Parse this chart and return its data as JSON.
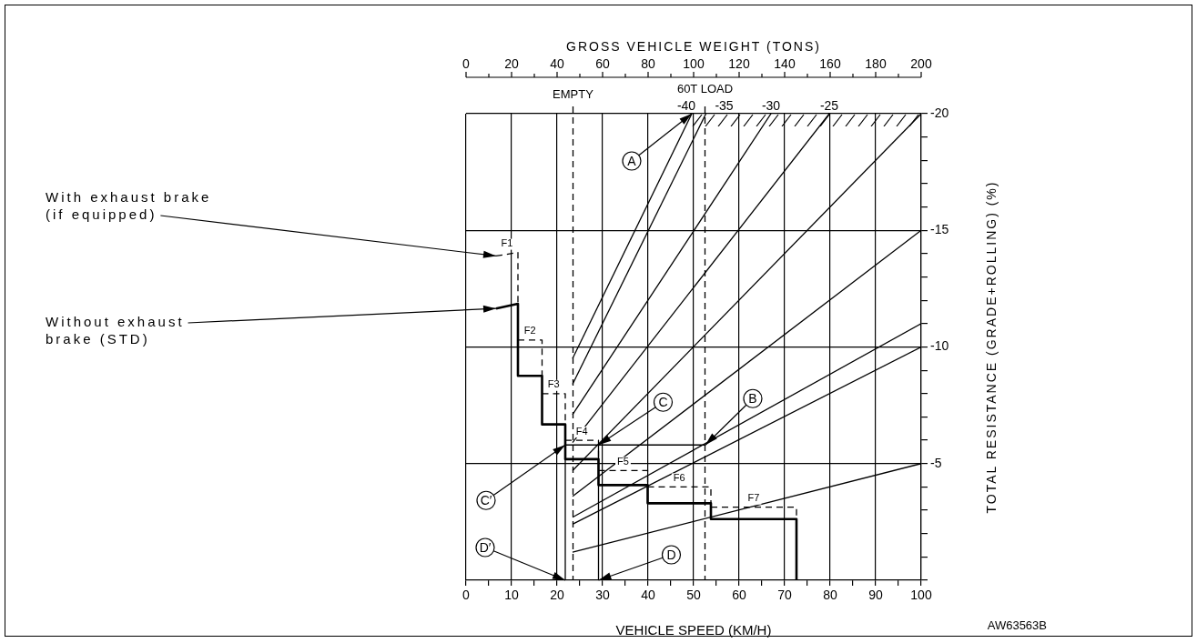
{
  "chart_data": {
    "type": "line",
    "xlabel": "VEHICLE SPEED (KM/H)",
    "x2label": "GROSS VEHICLE WEIGHT (TONS)",
    "ylabel": "TOTAL RESISTANCE (GRADE+ROLLING) (%)",
    "xlim": [
      0,
      100
    ],
    "xticks": [
      0,
      {
        "value": 5,
        "label": null
      },
      10,
      {
        "value": 15,
        "label": null
      },
      20,
      {
        "value": 25,
        "label": null
      },
      30,
      {
        "value": 35,
        "label": null
      },
      40,
      {
        "value": 45,
        "label": null
      },
      50,
      {
        "value": 55,
        "label": null
      },
      60,
      {
        "value": 65,
        "label": null
      },
      70,
      {
        "value": 75,
        "label": null
      },
      80,
      {
        "value": 85,
        "label": null
      },
      90,
      {
        "value": 95,
        "label": null
      },
      100
    ],
    "x2lim": [
      0,
      200
    ],
    "x2ticks": [
      0,
      {
        "value": 10,
        "label": null
      },
      20,
      {
        "value": 30,
        "label": null
      },
      40,
      {
        "value": 50,
        "label": null
      },
      60,
      {
        "value": 70,
        "label": null
      },
      80,
      {
        "value": 90,
        "label": null
      },
      100,
      {
        "value": 110,
        "label": null
      },
      120,
      {
        "value": 130,
        "label": null
      },
      140,
      {
        "value": 150,
        "label": null
      },
      160,
      {
        "value": 170,
        "label": null
      },
      180,
      {
        "value": 190,
        "label": null
      },
      200
    ],
    "ylim": [
      0,
      -20
    ],
    "yticks": [
      -20,
      {
        "value": -19,
        "label": null
      },
      {
        "value": -18,
        "label": null
      },
      {
        "value": -17,
        "label": null
      },
      {
        "value": -16,
        "label": null
      },
      -15,
      {
        "value": -14,
        "label": null
      },
      {
        "value": -13,
        "label": null
      },
      {
        "value": -12,
        "label": null
      },
      {
        "value": -11,
        "label": null
      },
      -10,
      {
        "value": -9,
        "label": null
      },
      {
        "value": -8,
        "label": null
      },
      {
        "value": -7,
        "label": null
      },
      {
        "value": -6,
        "label": null
      },
      -5,
      {
        "value": -4,
        "label": null
      },
      {
        "value": -3,
        "label": null
      },
      {
        "value": -2,
        "label": null
      },
      {
        "value": -1,
        "label": null
      },
      {
        "value": 0,
        "label": null
      }
    ],
    "grid": true,
    "legend": false,
    "marker": "none",
    "series": [
      {
        "name": "With exhaust brake (if equipped)",
        "color": "#000000",
        "line_style": "dashed",
        "x": [
          6.6,
          11.4,
          11.4,
          null,
          11.4,
          16.7,
          16.7,
          null,
          16.7,
          21.8,
          21.8,
          null,
          21.8,
          29.1,
          29.1,
          null,
          29.1,
          39.9,
          39.9,
          null,
          39.9,
          53.8,
          53.8,
          null,
          53.8,
          72.6,
          72.6
        ],
        "values": [
          -13.9,
          -14.05,
          -11.85,
          null,
          -10.3,
          -10.3,
          -8.76,
          null,
          -8.0,
          -8.0,
          -6.68,
          null,
          -6.0,
          -6.0,
          -5.19,
          null,
          -4.7,
          -4.7,
          -4.08,
          null,
          -4.0,
          -4.0,
          -3.3,
          null,
          -3.13,
          -3.13,
          -2.62
        ]
      },
      {
        "name": "Without exhaust brake (STD)",
        "color": "#000000",
        "line_style": "solid",
        "x": [
          6.6,
          11.4,
          11.4,
          16.7,
          16.7,
          21.8,
          21.8,
          29.1,
          29.1,
          39.9,
          39.9,
          53.8,
          53.8,
          72.6,
          72.6
        ],
        "values": [
          -11.65,
          -11.85,
          -8.76,
          -8.76,
          -6.68,
          -6.68,
          -5.19,
          -5.19,
          -4.08,
          -4.08,
          -3.3,
          -3.3,
          -2.62,
          -2.62,
          0
        ]
      },
      {
        "color": "#000000",
        "line_style": "solid",
        "x": [
          21.8,
          21.8,
          52.6,
          null,
          29.1,
          29.1
        ],
        "values": [
          0,
          -5.8,
          -5.8,
          null,
          -5.8,
          0
        ]
      },
      {
        "color": "#000000",
        "x": [
          23.4,
          49.6
        ],
        "values": [
          -9.5,
          -20
        ]
      },
      {
        "color": "#000000",
        "x": [
          23.4,
          52.7
        ],
        "values": [
          -8.4,
          -20
        ]
      },
      {
        "color": "#000000",
        "x": [
          23.4,
          67
        ],
        "values": [
          -7.1,
          -20
        ]
      },
      {
        "color": "#000000",
        "x": [
          23.4,
          79.8
        ],
        "values": [
          -5.9,
          -20
        ]
      },
      {
        "color": "#000000",
        "x": [
          23.4,
          100
        ],
        "values": [
          -4.7,
          -20
        ]
      },
      {
        "color": "#000000",
        "x": [
          23.4,
          100
        ],
        "values": [
          -3.6,
          -15
        ]
      },
      {
        "color": "#000000",
        "x": [
          23.4,
          100
        ],
        "values": [
          -2.7,
          -11
        ]
      },
      {
        "color": "#000000",
        "x": [
          23.4,
          100
        ],
        "values": [
          -2.4,
          -10
        ]
      },
      {
        "color": "#000000",
        "x": [
          23.4,
          100
        ],
        "values": [
          -1.2,
          -5
        ]
      }
    ],
    "ref_lines": [
      {
        "axis": "x2",
        "value": 47,
        "label": "EMPTY",
        "line_style": "dashed"
      },
      {
        "axis": "x2",
        "value": 105,
        "label": "60T LOAD",
        "line_style": "dashed"
      }
    ],
    "annotations": [
      "-40",
      "-35",
      "-30",
      "-25",
      "F1",
      "F2",
      "F3",
      "F4",
      "F5",
      "F6",
      "F7",
      {
        "text": "A",
        "x": 49.6,
        "y": -20
      },
      {
        "text": "B",
        "x": 52.6,
        "y": -5.8
      },
      {
        "text": "C",
        "x": 29.1,
        "y": -5.8
      },
      {
        "text": "C′",
        "x": 21.8,
        "y": -5.8
      },
      {
        "text": "D′",
        "x": 21.8,
        "y": 0
      },
      {
        "text": "D",
        "x": 29.1,
        "y": 0
      },
      "AW63563B"
    ]
  }
}
